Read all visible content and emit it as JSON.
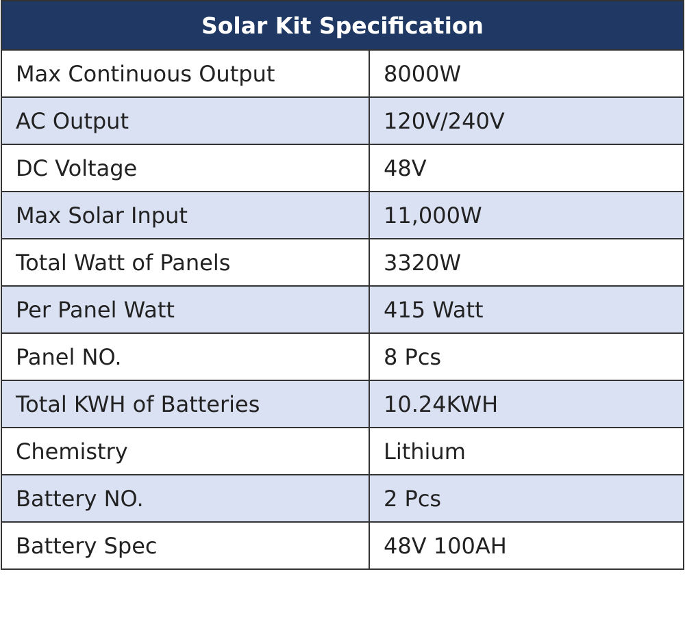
{
  "table": {
    "title": "Solar Kit Specification",
    "rows": [
      [
        "Max Continuous Output",
        "8000W"
      ],
      [
        "AC Output",
        "120V/240V"
      ],
      [
        "DC Voltage",
        "48V"
      ],
      [
        "Max Solar Input",
        "11,000W"
      ],
      [
        "Total Watt of Panels",
        "3320W"
      ],
      [
        "Per Panel Watt",
        "415 Watt"
      ],
      [
        "Panel NO.",
        "8 Pcs"
      ],
      [
        "Total KWH of Batteries",
        "10.24KWH"
      ],
      [
        "Chemistry",
        "Lithium"
      ],
      [
        "Battery NO.",
        "2 Pcs"
      ],
      [
        "Battery Spec",
        "48V 100AH"
      ]
    ]
  }
}
